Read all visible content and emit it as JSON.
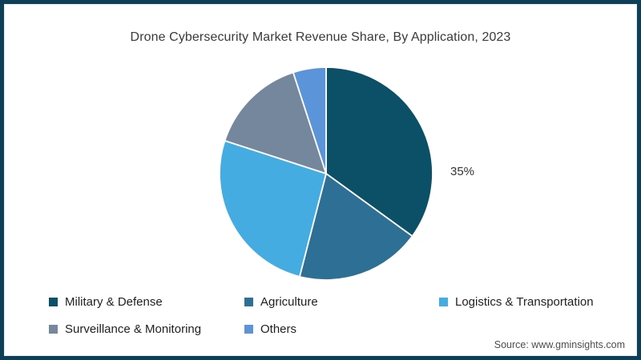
{
  "header": {
    "title": "Drone Cybersecurity Market Revenue Share, By Application, 2023"
  },
  "chart_data": {
    "type": "pie",
    "title": "Drone Cybersecurity Market Revenue Share, By Application, 2023",
    "categories": [
      "Military & Defense",
      "Agriculture",
      "Logistics & Transportation",
      "Surveillance & Monitoring",
      "Others"
    ],
    "values": [
      35,
      19,
      26,
      15,
      5
    ],
    "unit": "%",
    "colors": [
      "#0b5066",
      "#2e6f96",
      "#45ace2",
      "#75879d",
      "#5b94d8"
    ],
    "start_angle_deg": 0,
    "direction": "clockwise",
    "legend_position": "bottom",
    "data_labels": [
      {
        "category": "Military & Defense",
        "text": "35%"
      }
    ]
  },
  "footer": {
    "source": "Source: www.gminsights.com"
  },
  "theme": {
    "frame_color": "#0d4058",
    "background": "#ffffff",
    "slice_stroke": "#ffffff"
  }
}
